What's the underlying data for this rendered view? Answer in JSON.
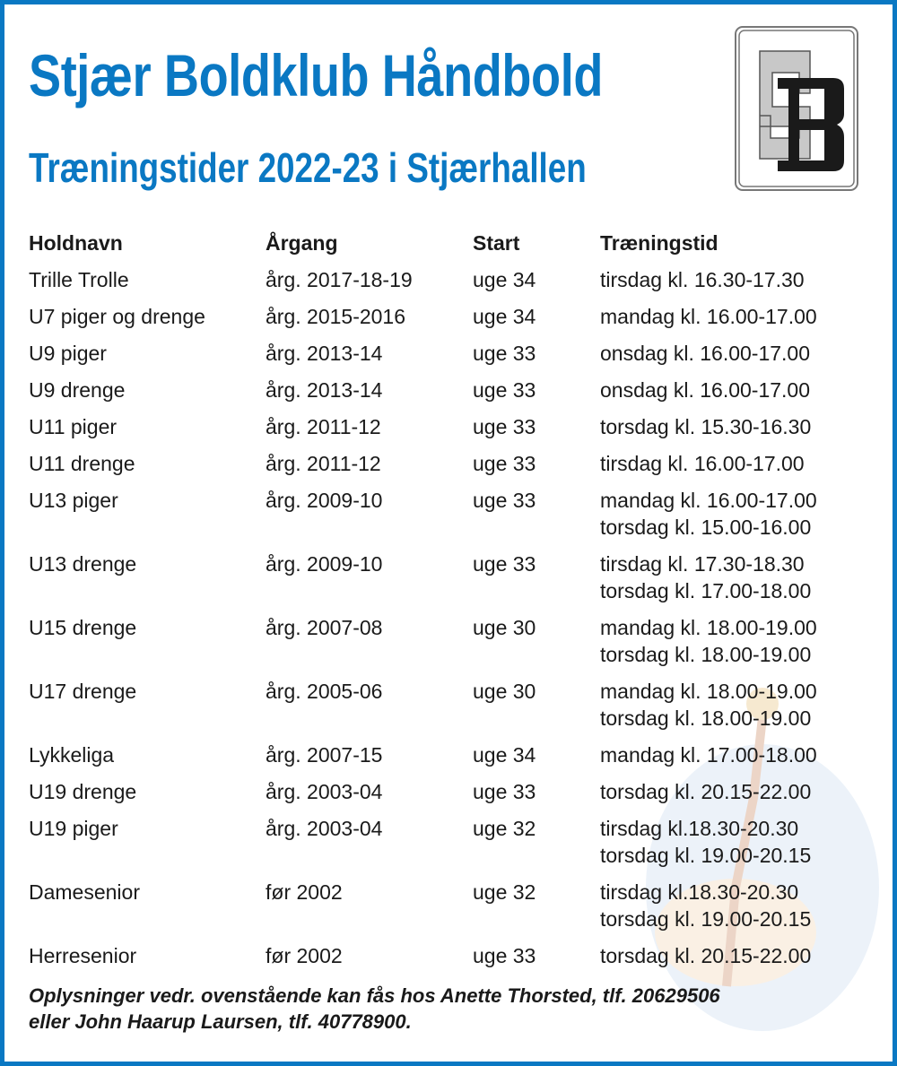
{
  "header": {
    "title": "Stjær Boldklub Håndbold",
    "subtitle": "Træningstider 2022-23 i Stjærhallen",
    "logo_text": "SB"
  },
  "colors": {
    "accent": "#0a78c3"
  },
  "table": {
    "columns": [
      "Holdnavn",
      "Årgang",
      "Start",
      "Træningstid"
    ],
    "rows": [
      {
        "team": "Trille Trolle",
        "year": "årg. 2017-18-19",
        "start": "uge 34",
        "times": [
          "tirsdag kl. 16.30-17.30"
        ]
      },
      {
        "team": "U7 piger og drenge",
        "year": "årg. 2015-2016",
        "start": "uge 34",
        "times": [
          "mandag kl. 16.00-17.00"
        ]
      },
      {
        "team": "U9 piger",
        "year": "årg. 2013-14",
        "start": "uge 33",
        "times": [
          "onsdag kl. 16.00-17.00"
        ]
      },
      {
        "team": "U9 drenge",
        "year": "årg. 2013-14",
        "start": "uge 33",
        "times": [
          "onsdag kl. 16.00-17.00"
        ]
      },
      {
        "team": "U11 piger",
        "year": "årg. 2011-12",
        "start": "uge 33",
        "times": [
          "torsdag kl. 15.30-16.30"
        ]
      },
      {
        "team": "U11 drenge",
        "year": "årg. 2011-12",
        "start": "uge 33",
        "times": [
          "tirsdag kl. 16.00-17.00"
        ]
      },
      {
        "team": "U13 piger",
        "year": "årg. 2009-10",
        "start": "uge 33",
        "times": [
          "mandag kl. 16.00-17.00",
          "torsdag kl. 15.00-16.00"
        ]
      },
      {
        "team": "U13 drenge",
        "year": "årg. 2009-10",
        "start": "uge 33",
        "times": [
          "tirsdag kl. 17.30-18.30",
          "torsdag kl. 17.00-18.00"
        ]
      },
      {
        "team": "U15 drenge",
        "year": "årg. 2007-08",
        "start": "uge 30",
        "times": [
          "mandag kl. 18.00-19.00",
          "torsdag kl. 18.00-19.00"
        ]
      },
      {
        "team": "U17 drenge",
        "year": "årg. 2005-06",
        "start": "uge 30",
        "times": [
          "mandag kl. 18.00-19.00",
          "torsdag kl. 18.00-19.00"
        ]
      },
      {
        "team": "Lykkeliga",
        "year": "årg. 2007-15",
        "start": "uge 34",
        "times": [
          "mandag kl. 17.00-18.00"
        ]
      },
      {
        "team": "U19 drenge",
        "year": "årg. 2003-04",
        "start": "uge 33",
        "times": [
          "torsdag kl. 20.15-22.00"
        ]
      },
      {
        "team": "U19 piger",
        "year": "årg. 2003-04",
        "start": "uge 32",
        "times": [
          "tirsdag kl.18.30-20.30",
          "torsdag kl. 19.00-20.15"
        ]
      },
      {
        "team": "Damesenior",
        "year": "før 2002",
        "start": "uge 32",
        "times": [
          "tirsdag kl.18.30-20.30",
          "torsdag kl. 19.00-20.15"
        ]
      },
      {
        "team": "Herresenior",
        "year": "før 2002",
        "start": "uge 33",
        "times": [
          "torsdag kl. 20.15-22.00"
        ]
      }
    ]
  },
  "footer": {
    "line1": "Oplysninger vedr. ovenstående kan fås hos Anette Thorsted, tlf. 20629506",
    "line2": "eller John Haarup Laursen, tlf. 40778900."
  }
}
